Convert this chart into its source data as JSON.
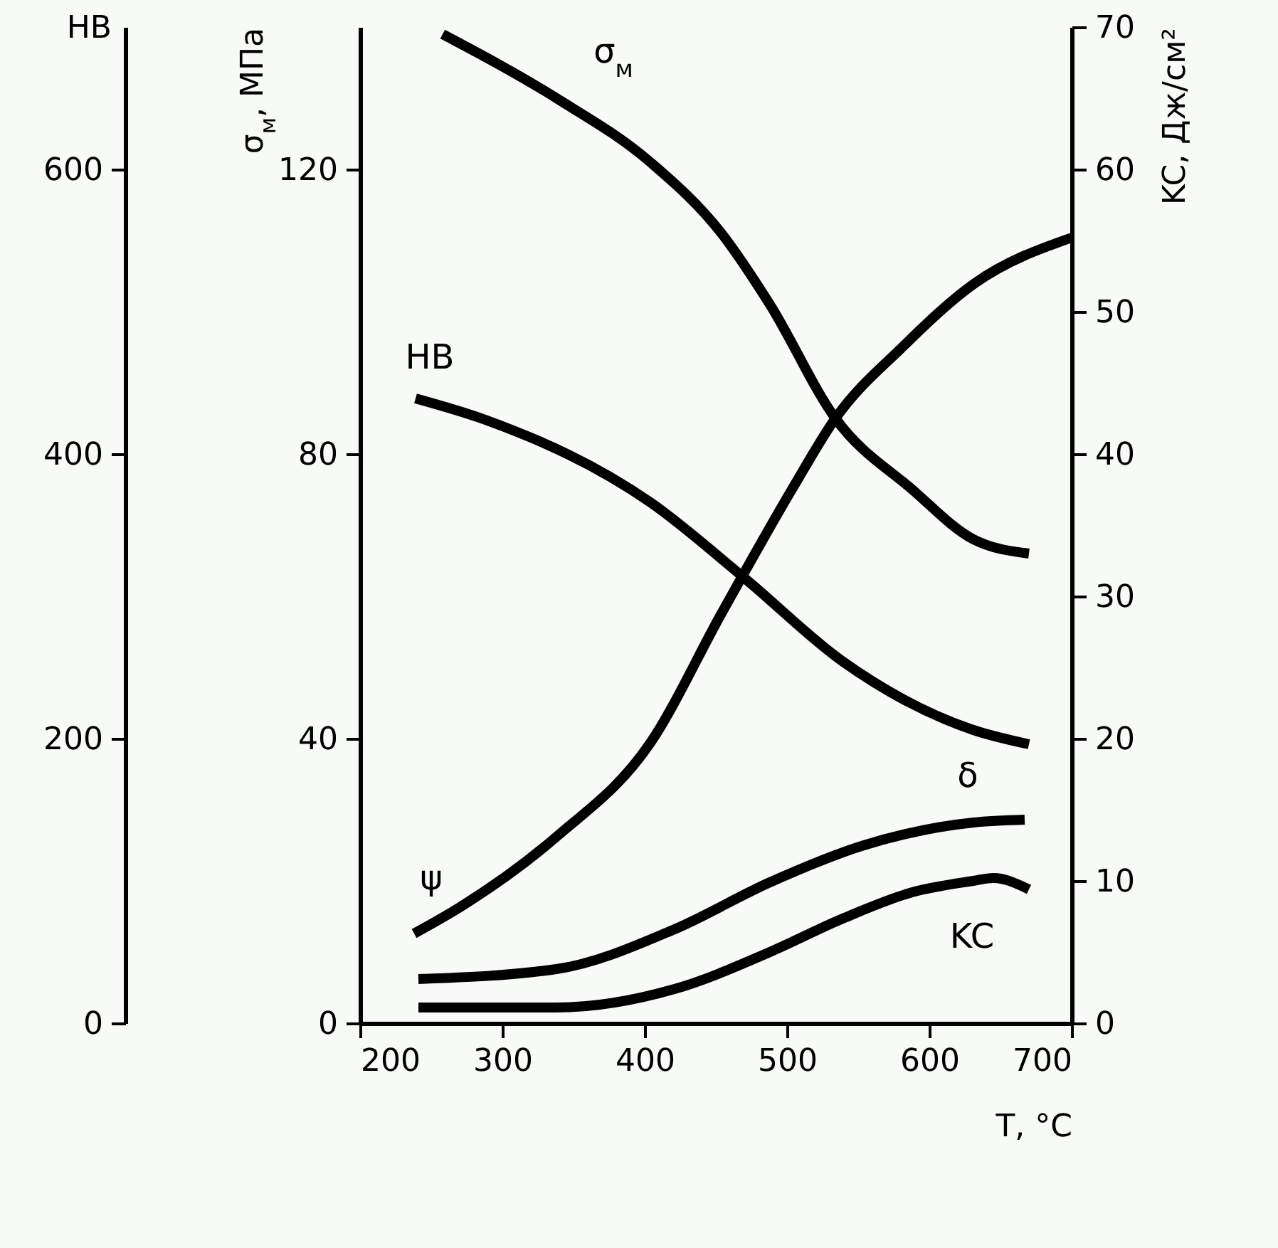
{
  "chart_data": {
    "type": "line",
    "xlabel": "T, °C",
    "ylabel": "σ$_{м}$, МПа",
    "y2label": "KC, Дж/см²",
    "y3label": "HB",
    "xlim": [
      200,
      700
    ],
    "xticks": [
      200,
      300,
      400,
      500,
      600,
      700
    ],
    "ylim": [
      0,
      140
    ],
    "yticks": [
      0,
      40,
      80,
      120
    ],
    "y2lim": [
      0,
      70
    ],
    "y2ticks": [
      0,
      10,
      20,
      30,
      40,
      50,
      60,
      70
    ],
    "y3lim": [
      0,
      700
    ],
    "y3ticks": [
      0,
      200,
      400,
      600
    ],
    "grid": false,
    "legend": false,
    "marker": "none",
    "line_style": "solid",
    "series": [
      {
        "name": "σ$_{м}$",
        "color": "#000000",
        "x": [
          258,
          338,
          404,
          454,
          488,
          534,
          588,
          631,
          670
        ],
        "values": [
          139,
          130,
          121,
          111,
          101,
          85,
          75,
          68,
          66
        ]
      },
      {
        "name": "HB",
        "color": "#000000",
        "axis": "y3",
        "x": [
          239,
          288,
          404,
          471,
          538,
          631,
          670
        ],
        "values": [
          439,
          424,
          366,
          312,
          255,
          206,
          196
        ]
      },
      {
        "name": "ψ",
        "color": "#000000",
        "axis": "y2",
        "x": [
          238,
          271,
          338,
          404,
          454,
          504,
          534,
          581,
          632,
          700
        ],
        "values": [
          6.3,
          8.2,
          13.1,
          19.7,
          28.8,
          37.6,
          42.5,
          47.5,
          52,
          55.2
        ]
      },
      {
        "name": "δ",
        "color": "#000000",
        "axis": "y2",
        "x": [
          241,
          338,
          421,
          488,
          554,
          631,
          667
        ],
        "values": [
          3.1,
          3.8,
          6.6,
          9.9,
          12.5,
          14.1,
          14.3
        ]
      },
      {
        "name": "KC",
        "color": "#000000",
        "axis": "y2",
        "x": [
          241,
          338,
          421,
          488,
          538,
          588,
          631,
          645,
          670
        ],
        "values": [
          1.1,
          1.1,
          2.4,
          5,
          7.3,
          9.2,
          10,
          10.2,
          9.4
        ]
      }
    ]
  }
}
